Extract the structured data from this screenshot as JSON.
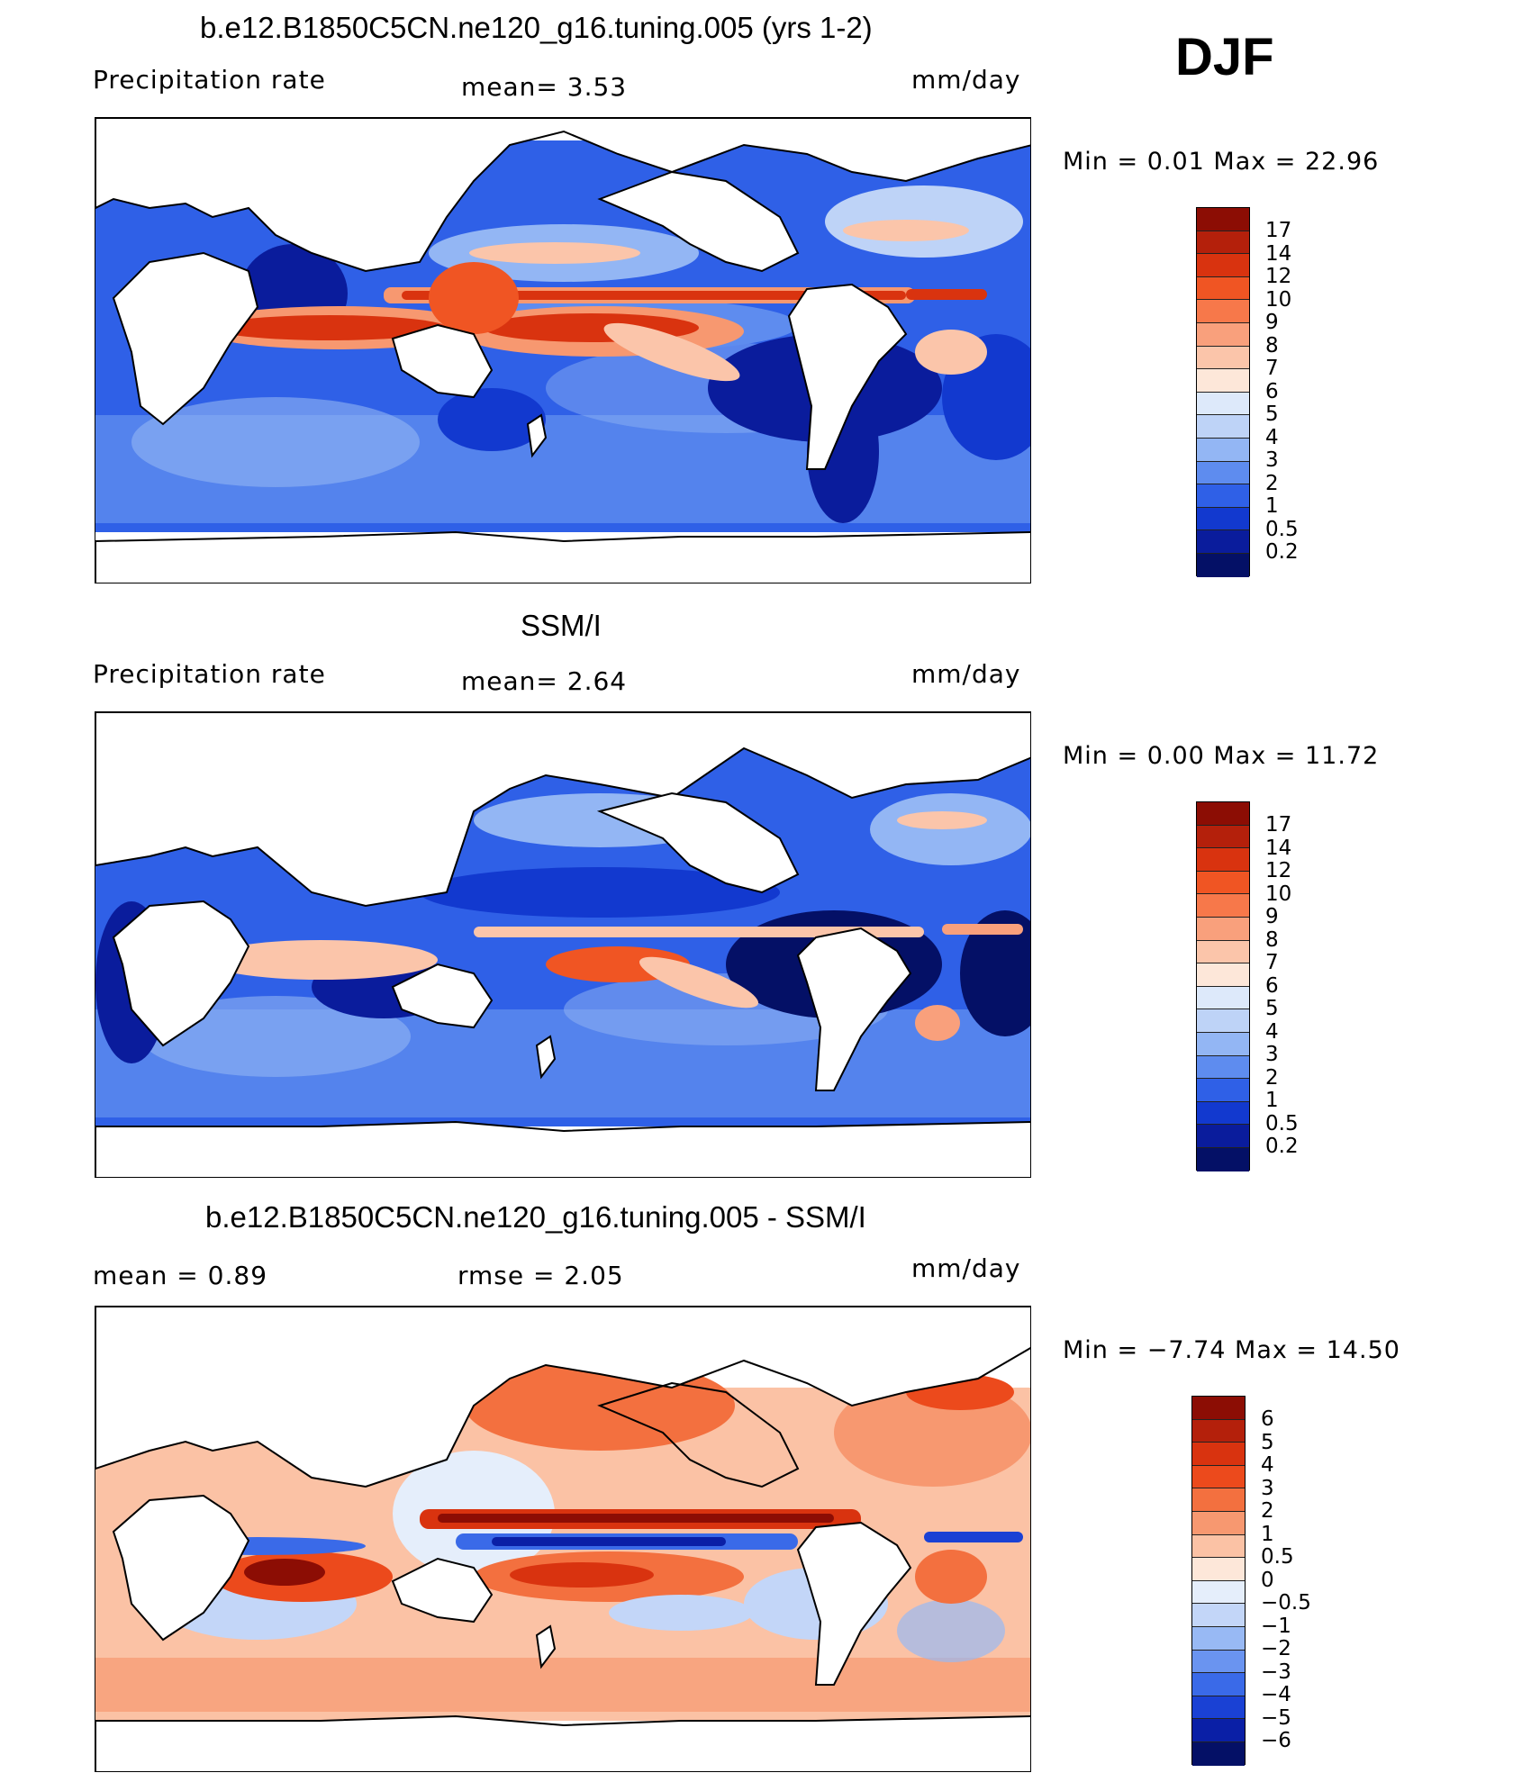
{
  "season": "DJF",
  "panels": [
    {
      "id": "model",
      "title": "b.e12.B1850C5CN.ne120_g16.tuning.005 (yrs 1-2)",
      "left_label": "Precipitation  rate",
      "center_label": "mean=    3.53",
      "units": "mm/day",
      "minmax": "Min  =     0.01  Max  =     22.96",
      "colorbar": {
        "levels": [
          "17",
          "14",
          "12",
          "10",
          "9",
          "8",
          "7",
          "6",
          "5",
          "4",
          "3",
          "2",
          "1",
          "0.5",
          "0.2"
        ],
        "colors": [
          "#8c0d04",
          "#b4200b",
          "#d9330f",
          "#f05523",
          "#f7784a",
          "#f9a07c",
          "#fbc5aa",
          "#fde7d9",
          "#dde9fa",
          "#bed3f7",
          "#93b6f4",
          "#5e8cef",
          "#2f60e7",
          "#1239cf",
          "#0a1c9c",
          "#041066"
        ]
      }
    },
    {
      "id": "obs",
      "title": "SSM/I",
      "left_label": "Precipitation  rate",
      "center_label": "mean=    2.64",
      "units": "mm/day",
      "minmax": "Min  =     0.00  Max  =     11.72",
      "colorbar": {
        "levels": [
          "17",
          "14",
          "12",
          "10",
          "9",
          "8",
          "7",
          "6",
          "5",
          "4",
          "3",
          "2",
          "1",
          "0.5",
          "0.2"
        ],
        "colors": [
          "#8c0d04",
          "#b4200b",
          "#d9330f",
          "#f05523",
          "#f7784a",
          "#f9a07c",
          "#fbc5aa",
          "#fde7d9",
          "#dde9fa",
          "#bed3f7",
          "#93b6f4",
          "#5e8cef",
          "#2f60e7",
          "#1239cf",
          "#0a1c9c",
          "#041066"
        ]
      }
    },
    {
      "id": "diff",
      "title": "b.e12.B1850C5CN.ne120_g16.tuning.005 - SSM/I",
      "left_label": "mean  =     0.89",
      "center_label": "rmse  =     2.05",
      "units": "mm/day",
      "minmax": "Min  =    −7.74  Max  =     14.50",
      "colorbar": {
        "levels": [
          "6",
          "5",
          "4",
          "3",
          "2",
          "1",
          "0.5",
          "0",
          "−0.5",
          "−1",
          "−2",
          "−3",
          "−4",
          "−5",
          "−6"
        ],
        "colors": [
          "#8c0d04",
          "#b4200b",
          "#d9330f",
          "#ec4a1c",
          "#f3703f",
          "#f79870",
          "#fbc2a5",
          "#fde7d9",
          "#e5eefb",
          "#c3d6f8",
          "#98b9f4",
          "#6a94f0",
          "#3a6ae8",
          "#1a41d4",
          "#0a1fa6",
          "#041066"
        ]
      }
    }
  ]
}
